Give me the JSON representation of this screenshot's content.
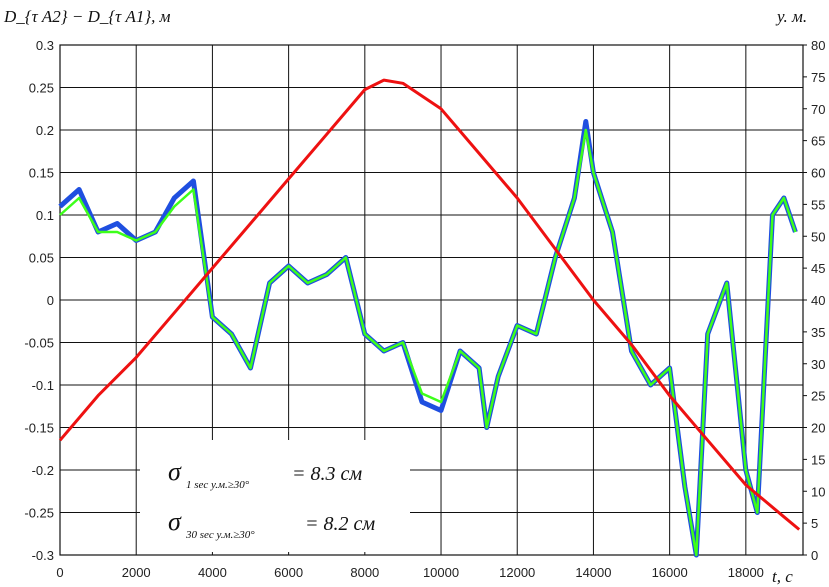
{
  "chart_data": {
    "type": "line",
    "ylabel_left": "D_{τ A2} − D_{τ A1}, м",
    "ylabel_right": "у. м.",
    "xlabel": "t, c",
    "xlim": [
      0,
      19500
    ],
    "ylim_left": [
      -0.3,
      0.3
    ],
    "ylim_right": [
      0,
      80
    ],
    "grid": true,
    "x_ticks": [
      "0",
      "2000",
      "4000",
      "6000",
      "8000",
      "10000",
      "12000",
      "14000",
      "16000",
      "18000"
    ],
    "y_left_ticks": [
      "0.3",
      "0.25",
      "0.2",
      "0.15",
      "0.1",
      "0.05",
      "0",
      "-0.05",
      "-0.1",
      "-0.15",
      "-0.2",
      "-0.25",
      "-0.3"
    ],
    "y_right_ticks": [
      "80",
      "75",
      "70",
      "65",
      "60",
      "55",
      "50",
      "45",
      "40",
      "35",
      "30",
      "25",
      "20",
      "15",
      "10",
      "5",
      "0"
    ],
    "series": [
      {
        "axis": "left",
        "color": "#1f4fe0",
        "x": [
          0,
          500,
          1000,
          1500,
          2000,
          2500,
          3000,
          3500,
          4000,
          4500,
          5000,
          5500,
          6000,
          6500,
          7000,
          7500,
          8000,
          8500,
          9000,
          9500,
          10000,
          10500,
          11000,
          11200,
          11500,
          12000,
          12500,
          13000,
          13500,
          13800,
          14000,
          14500,
          15000,
          15500,
          16000,
          16400,
          16700,
          17000,
          17500,
          18000,
          18300,
          18700,
          19000,
          19300
        ],
        "y": [
          0.11,
          0.13,
          0.08,
          0.09,
          0.07,
          0.08,
          0.12,
          0.14,
          -0.02,
          -0.04,
          -0.08,
          0.02,
          0.04,
          0.02,
          0.03,
          0.05,
          -0.04,
          -0.06,
          -0.05,
          -0.12,
          -0.13,
          -0.06,
          -0.08,
          -0.15,
          -0.09,
          -0.03,
          -0.04,
          0.05,
          0.12,
          0.21,
          0.15,
          0.08,
          -0.06,
          -0.1,
          -0.08,
          -0.22,
          -0.3,
          -0.04,
          0.02,
          -0.2,
          -0.25,
          0.1,
          0.12,
          0.08
        ]
      },
      {
        "axis": "left",
        "color": "#3dff1a",
        "x": [
          0,
          500,
          1000,
          1500,
          2000,
          2500,
          3000,
          3500,
          4000,
          4500,
          5000,
          5500,
          6000,
          6500,
          7000,
          7500,
          8000,
          8500,
          9000,
          9500,
          10000,
          10500,
          11000,
          11200,
          11500,
          12000,
          12500,
          13000,
          13500,
          13800,
          14000,
          14500,
          15000,
          15500,
          16000,
          16400,
          16700,
          17000,
          17500,
          18000,
          18300,
          18700,
          19000,
          19300
        ],
        "y": [
          0.1,
          0.12,
          0.08,
          0.08,
          0.07,
          0.08,
          0.11,
          0.13,
          -0.02,
          -0.04,
          -0.08,
          0.02,
          0.04,
          0.02,
          0.03,
          0.05,
          -0.04,
          -0.06,
          -0.05,
          -0.11,
          -0.12,
          -0.06,
          -0.08,
          -0.15,
          -0.09,
          -0.03,
          -0.04,
          0.05,
          0.12,
          0.2,
          0.15,
          0.08,
          -0.06,
          -0.1,
          -0.08,
          -0.22,
          -0.3,
          -0.04,
          0.02,
          -0.2,
          -0.25,
          0.1,
          0.12,
          0.08
        ]
      },
      {
        "axis": "right",
        "color": "#ee1111",
        "x": [
          0,
          1000,
          2000,
          3000,
          4000,
          5000,
          6000,
          7000,
          8000,
          8500,
          9000,
          10000,
          11000,
          12000,
          13000,
          14000,
          15000,
          16000,
          17000,
          18000,
          19000,
          19400
        ],
        "y": [
          18,
          25,
          31,
          38,
          45,
          52,
          59,
          66,
          73,
          74.5,
          74,
          70,
          63,
          56,
          48,
          40,
          33,
          25,
          18,
          11,
          6,
          4
        ]
      }
    ],
    "annotations": [
      {
        "sigma": "σ",
        "subscript": "1 sec у.м.≥30°",
        "equals": "= 8.3 см"
      },
      {
        "sigma": "σ",
        "subscript": "30 sec у.м.≥30°",
        "equals": "= 8.2 см"
      }
    ]
  }
}
